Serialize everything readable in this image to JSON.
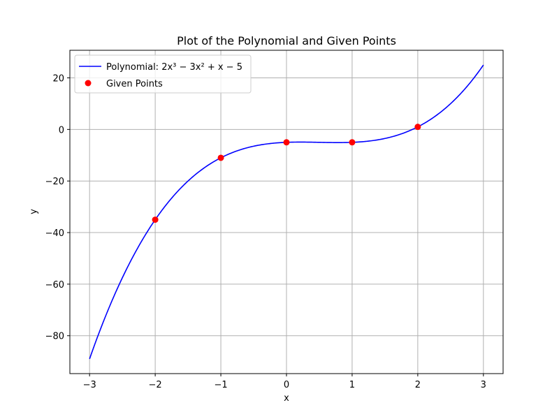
{
  "chart_data": {
    "type": "line",
    "title": "Plot of the Polynomial and Given Points",
    "xlabel": "x",
    "ylabel": "y",
    "xlim": [
      -3.3,
      3.3
    ],
    "ylim": [
      -94.7,
      30.7
    ],
    "grid": true,
    "legend_position": "top-left",
    "x_ticks": [
      -3,
      -2,
      -1,
      0,
      1,
      2,
      3
    ],
    "x_tick_labels": [
      "−3",
      "−2",
      "−1",
      "0",
      "1",
      "2",
      "3"
    ],
    "y_ticks": [
      -80,
      -60,
      -40,
      -20,
      0,
      20
    ],
    "y_tick_labels": [
      "−80",
      "−60",
      "−40",
      "−20",
      "0",
      "20"
    ],
    "series": [
      {
        "name": "Polynomial: 2x³ − 3x² + x − 5",
        "kind": "line",
        "color": "#0000ff",
        "coefficients": [
          2,
          -3,
          1,
          -5
        ],
        "x_range": [
          -3,
          3
        ]
      },
      {
        "name": "Given Points",
        "kind": "scatter",
        "color": "#ff0000",
        "x": [
          -2,
          -1,
          0,
          1,
          2
        ],
        "y": [
          -35,
          -11,
          -5,
          -5,
          1
        ]
      }
    ]
  }
}
